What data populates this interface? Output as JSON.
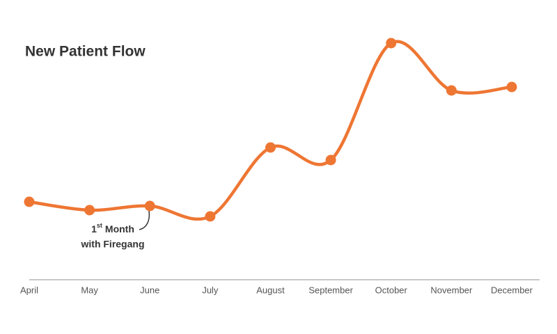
{
  "chart_data": {
    "type": "line",
    "title": "New Patient Flow",
    "categories": [
      "April",
      "May",
      "June",
      "July",
      "August",
      "September",
      "October",
      "November",
      "December"
    ],
    "values": [
      112,
      100,
      106,
      91,
      190,
      172,
      340,
      272,
      277
    ],
    "color": "#ee7633",
    "ylim": [
      0,
      360
    ],
    "annotation": {
      "number": "1",
      "superscript": "st",
      "word": "Month",
      "line2": "with Firegang",
      "category": "June"
    }
  }
}
